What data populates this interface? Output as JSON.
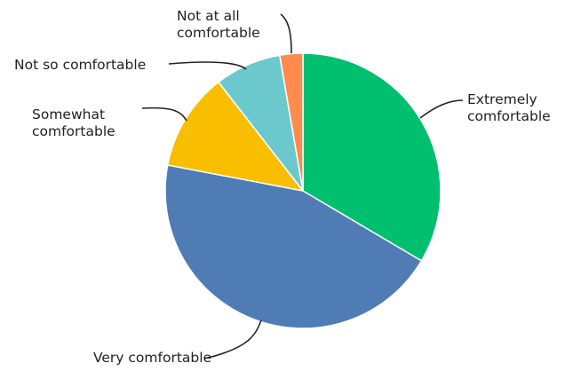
{
  "chart_data": {
    "type": "pie",
    "title": "",
    "start": "12 o'clock",
    "direction": "clockwise",
    "legend": "none",
    "slices": [
      {
        "label": [
          "Extremely",
          "comfortable"
        ],
        "value": 33.5,
        "color": "#00BF6F"
      },
      {
        "label": [
          "Very comfortable"
        ],
        "value": 44.5,
        "color": "#507CB6"
      },
      {
        "label": [
          "Somewhat",
          "comfortable"
        ],
        "value": 11.5,
        "color": "#F9BE00"
      },
      {
        "label": [
          "Not so comfortable"
        ],
        "value": 7.8,
        "color": "#6BC8CD"
      },
      {
        "label": [
          "Not at all",
          "comfortable"
        ],
        "value": 2.7,
        "color": "#FF8B4F"
      }
    ]
  }
}
